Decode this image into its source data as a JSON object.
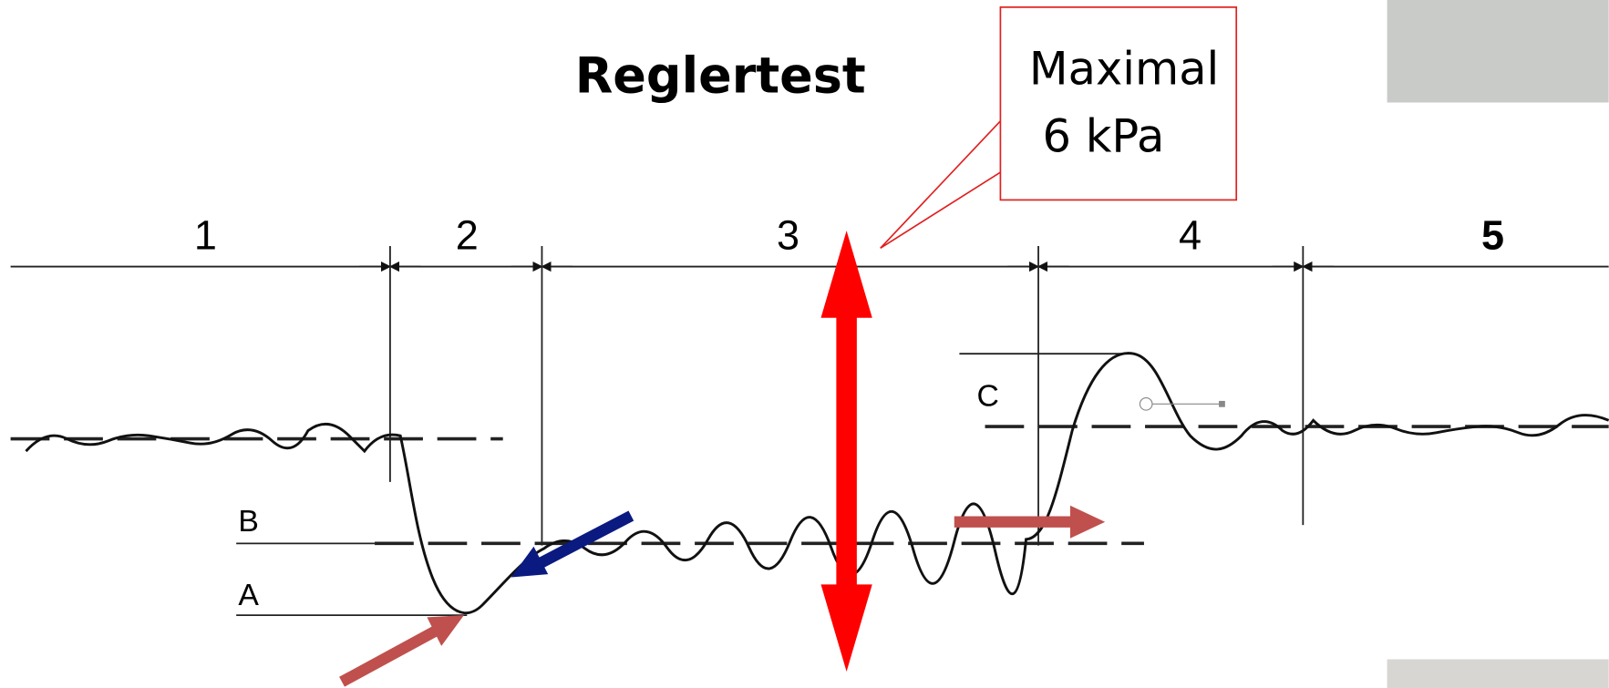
{
  "title": "Reglertest",
  "callout": {
    "lines": [
      "Maximal",
      "6 kPa"
    ]
  },
  "phases": [
    "1",
    "2",
    "3",
    "4",
    "5"
  ],
  "levels": [
    "A",
    "B",
    "C"
  ]
}
